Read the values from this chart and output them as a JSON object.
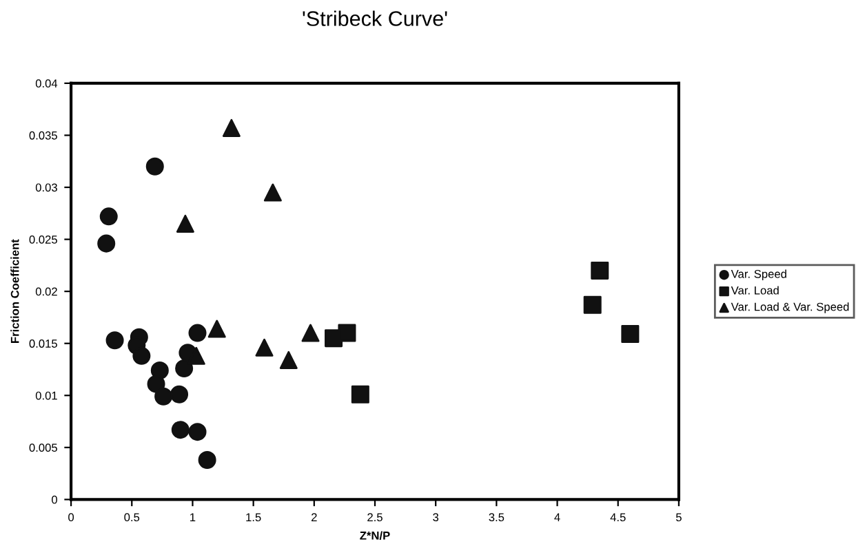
{
  "chart_data": {
    "type": "scatter",
    "title": "'Stribeck Curve'",
    "xlabel": "Z*N/P",
    "ylabel": "Friction Coefficient",
    "xlim": [
      0,
      5
    ],
    "xticks": [
      0,
      0.5,
      1,
      1.5,
      2,
      2.5,
      3,
      3.5,
      4,
      4.5,
      5
    ],
    "ylim": [
      0,
      0.04
    ],
    "yticks": [
      0,
      0.005,
      0.01,
      0.015,
      0.02,
      0.025,
      0.03,
      0.035,
      0.04
    ],
    "grid": false,
    "legend": "right",
    "series": [
      {
        "name": "Var. Speed",
        "color": "#111111",
        "marker": "circle",
        "x": [
          0.31,
          0.29,
          0.69,
          0.36,
          0.56,
          0.54,
          0.58,
          0.73,
          0.7,
          0.76,
          0.89,
          0.93,
          0.96,
          1.04,
          0.9,
          1.04,
          1.12
        ],
        "values": [
          0.0272,
          0.0246,
          0.032,
          0.0153,
          0.0156,
          0.0148,
          0.0138,
          0.0124,
          0.0111,
          0.0099,
          0.0101,
          0.0126,
          0.0141,
          0.016,
          0.0067,
          0.0065,
          0.0038
        ]
      },
      {
        "name": "Var. Load",
        "color": "#111111",
        "marker": "square",
        "x": [
          2.16,
          2.27,
          2.38,
          4.35,
          4.29,
          4.6
        ],
        "values": [
          0.0155,
          0.016,
          0.0101,
          0.022,
          0.0187,
          0.0159
        ]
      },
      {
        "name": "Var. Load & Var. Speed",
        "color": "#111111",
        "marker": "triangle",
        "x": [
          1.32,
          1.66,
          0.94,
          1.2,
          1.03,
          1.59,
          1.79,
          1.97
        ],
        "values": [
          0.0357,
          0.0295,
          0.0265,
          0.0164,
          0.0138,
          0.0146,
          0.0134,
          0.016
        ]
      }
    ]
  }
}
